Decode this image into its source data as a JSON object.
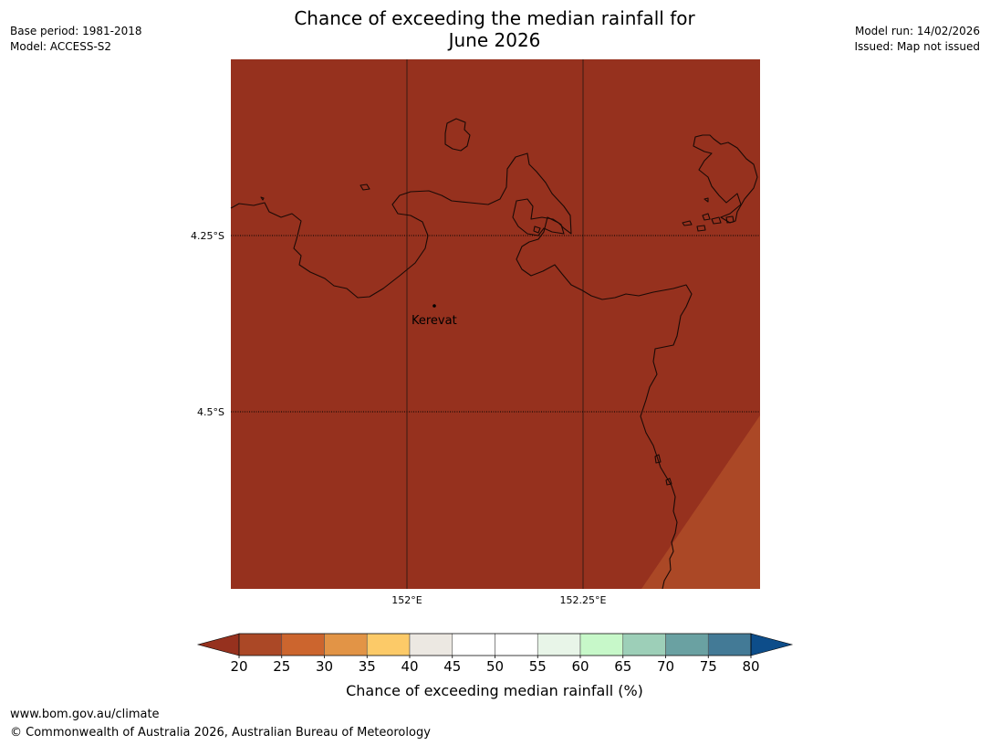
{
  "title_line1": "Chance of exceeding the median rainfall for",
  "title_line2": "June 2026",
  "meta_left": {
    "base_period": "Base period: 1981-2018",
    "model": "Model: ACCESS-S2"
  },
  "meta_right": {
    "model_run": "Model run: 14/02/2026",
    "issued": "Issued: Map not issued"
  },
  "map": {
    "lat_labels": [
      "4.25°S",
      "4.5°S"
    ],
    "lon_labels": [
      "152°E",
      "152.25°E"
    ],
    "place": {
      "name": "Kerevat"
    },
    "fill_main": "#96311e",
    "fill_corner": "#ab4826"
  },
  "legend": {
    "colors": [
      "#96311e",
      "#ab4826",
      "#cc652e",
      "#e29446",
      "#fcca68",
      "#ece8e2",
      "#ffffff",
      "#ffffff",
      "#e8f5e8",
      "#c7f8c9",
      "#9dcfb8",
      "#6aa1a2",
      "#437a96",
      "#0d4d8a"
    ],
    "ticks": [
      "20",
      "25",
      "30",
      "35",
      "40",
      "45",
      "50",
      "55",
      "60",
      "65",
      "70",
      "75",
      "80"
    ],
    "label": "Chance of exceeding median rainfall (%)"
  },
  "footer": {
    "url": "www.bom.gov.au/climate",
    "copyright": "© Commonwealth of Australia 2026, Australian Bureau of Meteorology"
  }
}
